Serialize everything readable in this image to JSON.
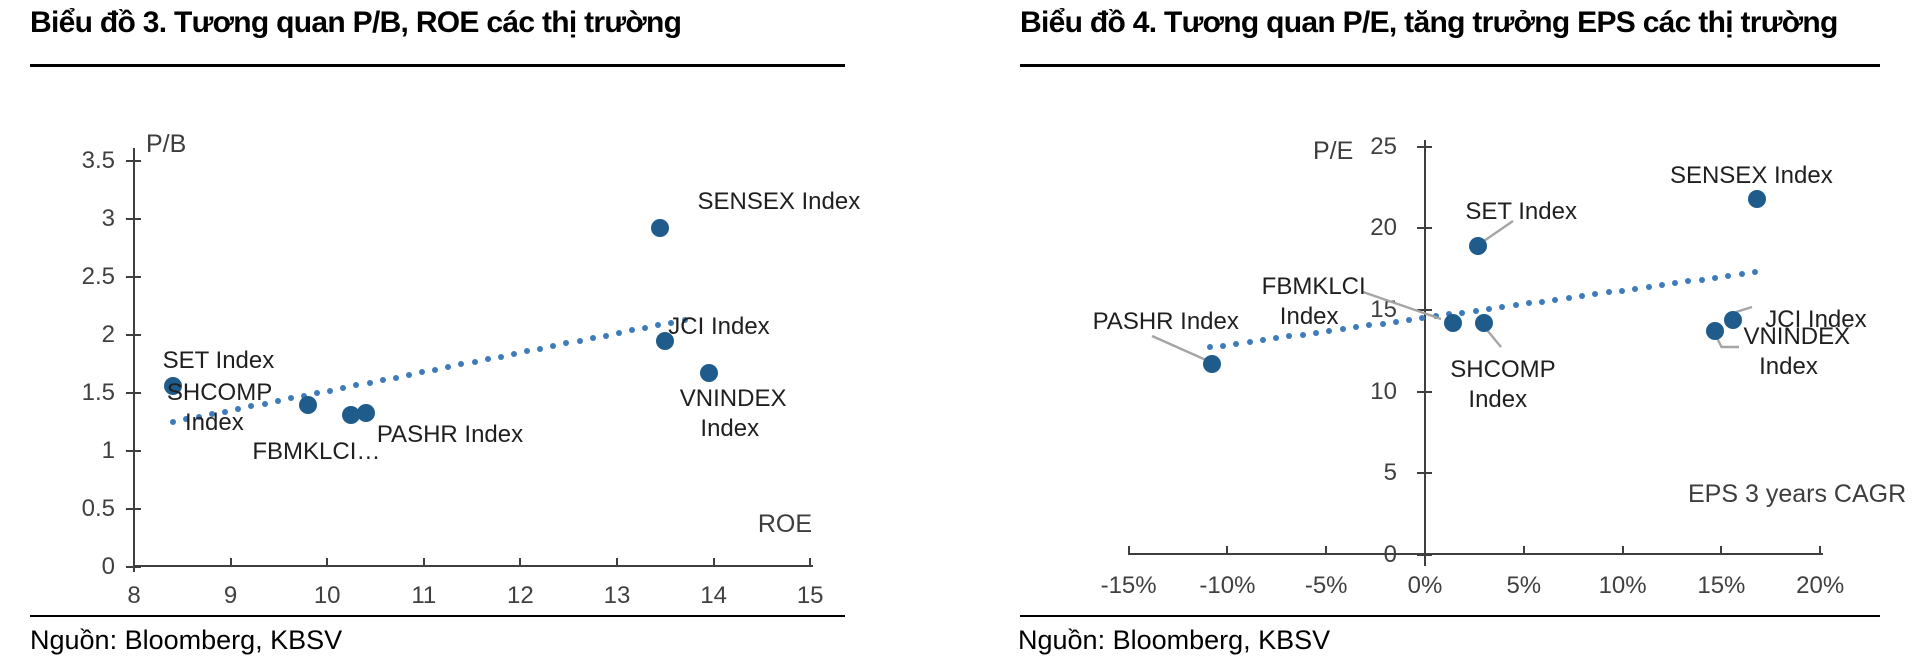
{
  "panels": [
    {
      "title": "Biểu đồ 3. Tương quan P/B, ROE các thị trường",
      "source": "Nguồn: Bloomberg, KBSV"
    },
    {
      "title": "Biểu đồ 4. Tương quan P/E, tăng trưởng EPS các thị trường",
      "source": "Nguồn: Bloomberg, KBSV"
    }
  ],
  "colors": {
    "point": "#1F5C8C",
    "trend": "#3E7BBA",
    "leader": "#A5A5A5",
    "axis": "#3f3f3f",
    "text": "#1f1f1f"
  },
  "chart_data": [
    {
      "type": "scatter",
      "title": "Biểu đồ 3. Tương quan P/B, ROE các thị trường",
      "xlabel": "ROE",
      "ylabel": "P/B",
      "xlim": [
        8,
        15
      ],
      "ylim": [
        0,
        3.5
      ],
      "grid": false,
      "x_tick_values": [
        8,
        9,
        10,
        11,
        12,
        13,
        14,
        15
      ],
      "x_ticks": [
        "8",
        "9",
        "10",
        "11",
        "12",
        "13",
        "14",
        "15"
      ],
      "y_tick_values": [
        0,
        0.5,
        1,
        1.5,
        2,
        2.5,
        3,
        3.5
      ],
      "y_ticks": [
        "0",
        "0.5",
        "1",
        "1.5",
        "2",
        "2.5",
        "3",
        "3.5"
      ],
      "points": [
        {
          "id": "set",
          "label": "SET Index",
          "x": 8.4,
          "y": 1.56
        },
        {
          "id": "shcomp",
          "label": "SHCOMP\nIndex",
          "x": 9.8,
          "y": 1.4
        },
        {
          "id": "fbmklci",
          "label": "FBMKLCI…",
          "x": 10.25,
          "y": 1.31
        },
        {
          "id": "pashr",
          "label": "PASHR Index",
          "x": 10.4,
          "y": 1.33
        },
        {
          "id": "sensex",
          "label": "SENSEX Index",
          "x": 13.45,
          "y": 2.92
        },
        {
          "id": "jci",
          "label": "JCI Index",
          "x": 13.5,
          "y": 1.95
        },
        {
          "id": "vnindex",
          "label": "VNINDEX\nIndex",
          "x": 13.95,
          "y": 1.67
        }
      ],
      "trendline": {
        "style": "dotted",
        "x1": 8.4,
        "y1": 1.25,
        "x2": 13.7,
        "y2": 2.13
      },
      "source": "Nguồn: Bloomberg, KBSV"
    },
    {
      "type": "scatter",
      "title": "Biểu đồ 4. Tương quan P/E, tăng trưởng EPS các thị trường",
      "xlabel": "EPS 3 years CAGR",
      "ylabel": "P/E",
      "xlim": [
        -15,
        20
      ],
      "ylim": [
        0,
        25
      ],
      "grid": false,
      "x_tick_values": [
        -15,
        -10,
        -5,
        0,
        5,
        10,
        15,
        20
      ],
      "x_ticks": [
        "-15%",
        "-10%",
        "-5%",
        "0%",
        "5%",
        "10%",
        "15%",
        "20%"
      ],
      "y_tick_values": [
        0,
        5,
        10,
        15,
        20,
        25
      ],
      "y_ticks": [
        "0",
        "5",
        "10",
        "15",
        "20",
        "25"
      ],
      "points": [
        {
          "id": "pashr",
          "label": "PASHR Index",
          "x": -10.8,
          "y": 11.7
        },
        {
          "id": "fbmklci",
          "label": "FBMKLCI\nIndex",
          "x": 1.4,
          "y": 14.2
        },
        {
          "id": "set",
          "label": "SET Index",
          "x": 2.7,
          "y": 18.9
        },
        {
          "id": "shcomp",
          "label": "SHCOMP\nIndex",
          "x": 3.0,
          "y": 14.2
        },
        {
          "id": "vnindex",
          "label": "VNINDEX\nIndex",
          "x": 14.7,
          "y": 13.7
        },
        {
          "id": "jci",
          "label": "JCI Index",
          "x": 15.6,
          "y": 14.4
        },
        {
          "id": "sensex",
          "label": "SENSEX Index",
          "x": 16.8,
          "y": 21.8
        }
      ],
      "trendline": {
        "style": "dotted",
        "x1": -10.9,
        "y1": 12.7,
        "x2": 16.7,
        "y2": 17.3
      },
      "source": "Nguồn: Bloomberg, KBSV"
    }
  ]
}
